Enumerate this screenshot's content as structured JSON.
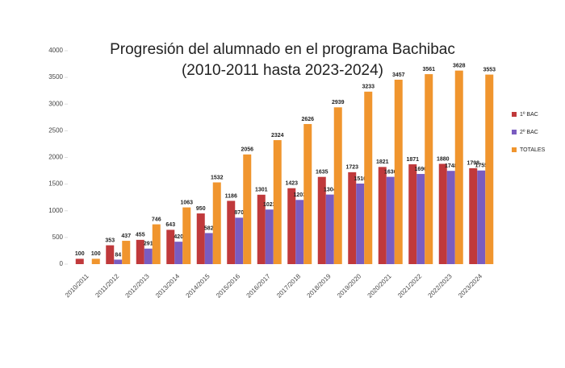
{
  "chart_data": {
    "type": "bar",
    "title": "Progresión del alumnado en el programa Bachibac",
    "subtitle": "(2010-2011 hasta 2023-2024)",
    "categories": [
      "2010/2011",
      "2011/2012",
      "2012/2013",
      "2013/2014",
      "2014/2015",
      "2015/2016",
      "2016/2017",
      "2017/2018",
      "2018/2019",
      "2019/2020",
      "2020/2021",
      "2021/2022",
      "2022/2023",
      "2023/2024"
    ],
    "series": [
      {
        "name": "1º BAC",
        "color": "#c0393b",
        "values": [
          100,
          353,
          455,
          643,
          950,
          1186,
          1301,
          1423,
          1635,
          1723,
          1821,
          1871,
          1880,
          1798
        ]
      },
      {
        "name": "2º BAC",
        "color": "#7a5cc0",
        "values": [
          null,
          84,
          291,
          420,
          582,
          870,
          1023,
          1203,
          1304,
          1510,
          1636,
          1690,
          1748,
          1755
        ]
      },
      {
        "name": "TOTALES",
        "color": "#f0952e",
        "values": [
          100,
          437,
          746,
          1063,
          1532,
          2056,
          2324,
          2626,
          2939,
          3233,
          3457,
          3561,
          3628,
          3553
        ]
      }
    ],
    "ylim": [
      0,
      4000
    ],
    "yticks": [
      0,
      500,
      1000,
      1500,
      2000,
      2500,
      3000,
      3500,
      4000
    ],
    "legend": "right"
  }
}
